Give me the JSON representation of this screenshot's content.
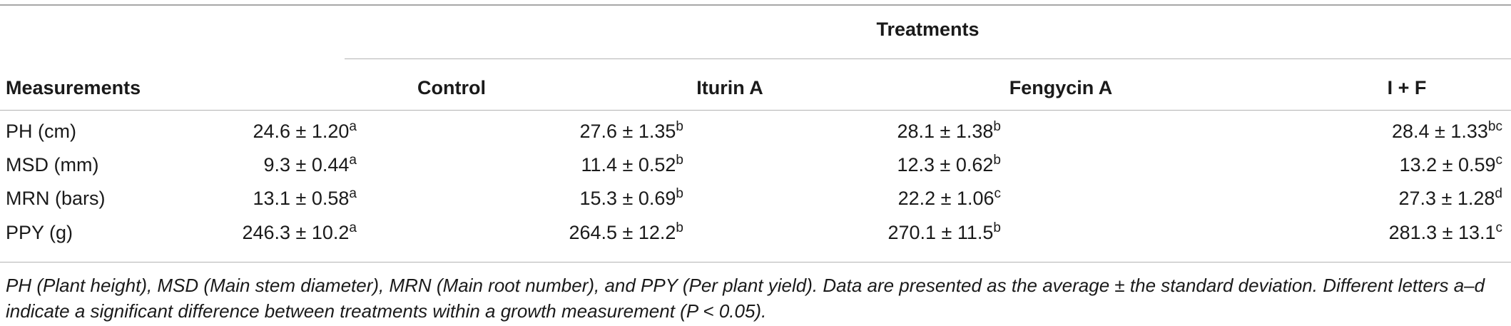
{
  "table": {
    "group_header": "Treatments",
    "measurements_header": "Measurements",
    "columns": [
      "Control",
      "Iturin A",
      "Fengycin A",
      "I + F"
    ],
    "rows": [
      {
        "label": "PH (cm)",
        "cells": [
          {
            "value": "24.6 ± 1.20",
            "sup": "a"
          },
          {
            "value": "27.6 ± 1.35",
            "sup": "b"
          },
          {
            "value": "28.1 ± 1.38",
            "sup": "b"
          },
          {
            "value": "28.4 ± 1.33",
            "sup": "bc"
          }
        ]
      },
      {
        "label": "MSD (mm)",
        "cells": [
          {
            "value": "9.3 ± 0.44",
            "sup": "a"
          },
          {
            "value": "11.4 ± 0.52",
            "sup": "b"
          },
          {
            "value": "12.3 ± 0.62",
            "sup": "b"
          },
          {
            "value": "13.2 ± 0.59",
            "sup": "c"
          }
        ]
      },
      {
        "label": "MRN (bars)",
        "cells": [
          {
            "value": "13.1 ± 0.58",
            "sup": "a"
          },
          {
            "value": "15.3 ± 0.69",
            "sup": "b"
          },
          {
            "value": "22.2 ± 1.06",
            "sup": "c"
          },
          {
            "value": "27.3 ± 1.28",
            "sup": "d"
          }
        ]
      },
      {
        "label": "PPY (g)",
        "cells": [
          {
            "value": "246.3 ± 10.2",
            "sup": "a"
          },
          {
            "value": "264.5 ± 12.2",
            "sup": "b"
          },
          {
            "value": "270.1 ± 11.5",
            "sup": "b"
          },
          {
            "value": "281.3 ± 13.1",
            "sup": "c"
          }
        ]
      }
    ]
  },
  "footnote": "PH (Plant height), MSD (Main stem diameter), MRN (Main root number), and PPY (Per plant yield). Data are presented as the average ± the standard deviation. Different letters a–d indicate a significant difference between treatments within a growth measurement (P < 0.05)."
}
